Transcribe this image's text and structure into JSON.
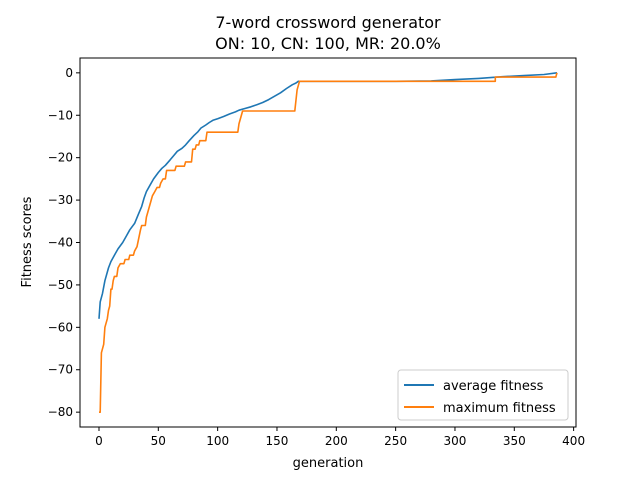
{
  "chart_data": {
    "type": "line",
    "title_line1": "7-word crossword generator",
    "title_line2": "ON: 10, CN: 100, MR: 20.0%",
    "xlabel": "generation",
    "ylabel": "Fitness scores",
    "xlim": [
      -16,
      402
    ],
    "ylim": [
      -83.5,
      3.5
    ],
    "xticks": [
      0,
      50,
      100,
      150,
      200,
      250,
      300,
      350,
      400
    ],
    "yticks": [
      0,
      -10,
      -20,
      -30,
      -40,
      -50,
      -60,
      -70,
      -80
    ],
    "xtick_labels": [
      "0",
      "50",
      "100",
      "150",
      "200",
      "250",
      "300",
      "350",
      "400"
    ],
    "ytick_labels": [
      "0",
      "−10",
      "−20",
      "−30",
      "−40",
      "−50",
      "−60",
      "−70",
      "−80"
    ],
    "grid": false,
    "legend_position": "lower-right",
    "series": [
      {
        "name": "average fitness",
        "color": "#1f77b4",
        "points": [
          [
            0,
            -58
          ],
          [
            1,
            -54
          ],
          [
            3,
            -52
          ],
          [
            5,
            -49
          ],
          [
            8,
            -46
          ],
          [
            10,
            -44.5
          ],
          [
            13,
            -43
          ],
          [
            16,
            -41.5
          ],
          [
            20,
            -40
          ],
          [
            23,
            -38.5
          ],
          [
            26,
            -37
          ],
          [
            30,
            -35.5
          ],
          [
            33,
            -33.5
          ],
          [
            36,
            -31.5
          ],
          [
            38,
            -29.5
          ],
          [
            40,
            -28
          ],
          [
            43,
            -26.5
          ],
          [
            46,
            -25
          ],
          [
            50,
            -23.5
          ],
          [
            53,
            -22.5
          ],
          [
            56,
            -21.8
          ],
          [
            60,
            -20.5
          ],
          [
            63,
            -19.5
          ],
          [
            66,
            -18.5
          ],
          [
            70,
            -17.8
          ],
          [
            73,
            -17
          ],
          [
            76,
            -16
          ],
          [
            80,
            -14.8
          ],
          [
            83,
            -14
          ],
          [
            86,
            -13
          ],
          [
            90,
            -12.3
          ],
          [
            93,
            -11.7
          ],
          [
            96,
            -11.2
          ],
          [
            100,
            -10.8
          ],
          [
            105,
            -10.3
          ],
          [
            110,
            -9.7
          ],
          [
            115,
            -9.2
          ],
          [
            118,
            -8.8
          ],
          [
            123,
            -8.4
          ],
          [
            128,
            -8
          ],
          [
            133,
            -7.5
          ],
          [
            138,
            -7
          ],
          [
            143,
            -6.3
          ],
          [
            148,
            -5.5
          ],
          [
            153,
            -4.7
          ],
          [
            158,
            -3.7
          ],
          [
            163,
            -2.8
          ],
          [
            166,
            -2.4
          ],
          [
            168,
            -2
          ],
          [
            200,
            -2
          ],
          [
            250,
            -2
          ],
          [
            280,
            -1.9
          ],
          [
            300,
            -1.6
          ],
          [
            320,
            -1.3
          ],
          [
            340,
            -0.9
          ],
          [
            360,
            -0.6
          ],
          [
            375,
            -0.4
          ],
          [
            386,
            0
          ]
        ]
      },
      {
        "name": "maximum fitness",
        "color": "#ff7f0e",
        "points": [
          [
            0,
            -80
          ],
          [
            1,
            -80
          ],
          [
            2,
            -66
          ],
          [
            4,
            -64
          ],
          [
            5,
            -60
          ],
          [
            7,
            -58
          ],
          [
            8,
            -56
          ],
          [
            9,
            -55
          ],
          [
            10,
            -51
          ],
          [
            11,
            -51
          ],
          [
            12,
            -49
          ],
          [
            13,
            -48
          ],
          [
            15,
            -48
          ],
          [
            16,
            -46
          ],
          [
            18,
            -45
          ],
          [
            21,
            -45
          ],
          [
            22,
            -44
          ],
          [
            25,
            -44
          ],
          [
            26,
            -43
          ],
          [
            29,
            -43
          ],
          [
            30,
            -42
          ],
          [
            32,
            -41
          ],
          [
            35,
            -37
          ],
          [
            36,
            -36
          ],
          [
            39,
            -36
          ],
          [
            40,
            -34
          ],
          [
            42,
            -32
          ],
          [
            44,
            -30
          ],
          [
            45,
            -29
          ],
          [
            47,
            -28
          ],
          [
            49,
            -27
          ],
          [
            51,
            -27
          ],
          [
            52,
            -26
          ],
          [
            54,
            -25
          ],
          [
            56,
            -25
          ],
          [
            57,
            -23
          ],
          [
            64,
            -23
          ],
          [
            65,
            -22
          ],
          [
            72,
            -22
          ],
          [
            73,
            -21
          ],
          [
            78,
            -21
          ],
          [
            79,
            -18
          ],
          [
            81,
            -18
          ],
          [
            82,
            -17
          ],
          [
            84,
            -17
          ],
          [
            85,
            -16
          ],
          [
            90,
            -16
          ],
          [
            91,
            -14
          ],
          [
            98,
            -14
          ],
          [
            99,
            -14
          ],
          [
            117,
            -14
          ],
          [
            118,
            -12
          ],
          [
            119,
            -11
          ],
          [
            121,
            -9
          ],
          [
            126,
            -9
          ],
          [
            165,
            -9
          ],
          [
            167,
            -4
          ],
          [
            169,
            -2
          ],
          [
            200,
            -2
          ],
          [
            330,
            -2
          ],
          [
            334,
            -2
          ],
          [
            334,
            -1
          ],
          [
            385,
            -1
          ],
          [
            386,
            0
          ]
        ]
      }
    ]
  }
}
